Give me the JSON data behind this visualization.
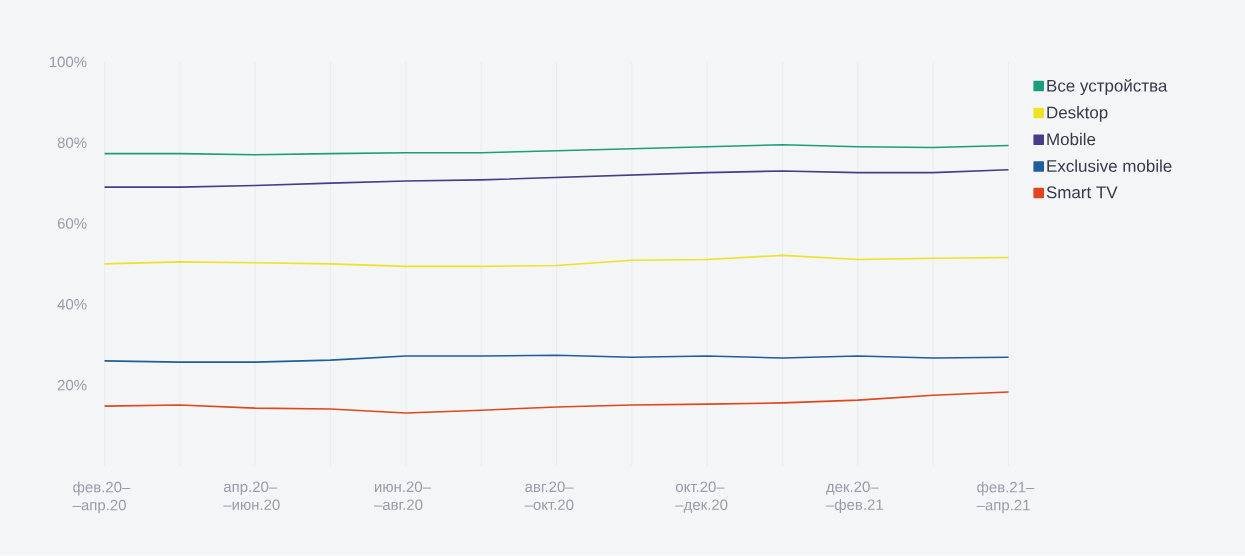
{
  "chart_data": {
    "type": "line",
    "categories": [
      "фев.20– –апр.20",
      null,
      "апр.20– –июн.20",
      null,
      "июн.20– –авг.20",
      null,
      "авг.20– –окт.20",
      null,
      "окт.20– –дек.20",
      null,
      "дек.20– –фев.21",
      null,
      "фев.21– –апр.21"
    ],
    "series": [
      {
        "name": "Все устройства",
        "color": "#1b9e7f",
        "values": [
          77.3,
          77.3,
          77.0,
          77.3,
          77.5,
          77.5,
          78.0,
          78.5,
          79.0,
          79.5,
          79.0,
          78.8,
          79.3
        ]
      },
      {
        "name": "Desktop",
        "color": "#eee225",
        "values": [
          50.0,
          50.5,
          50.3,
          50.0,
          49.4,
          49.4,
          49.6,
          50.9,
          51.1,
          52.1,
          51.1,
          51.4,
          51.6
        ]
      },
      {
        "name": "Mobile",
        "color": "#4a3b88",
        "values": [
          69.0,
          69.0,
          69.4,
          70.0,
          70.5,
          70.8,
          71.4,
          72.0,
          72.6,
          73.0,
          72.6,
          72.6,
          73.3
        ]
      },
      {
        "name": "Exclusive mobile",
        "color": "#1f5e9c",
        "values": [
          26.0,
          25.7,
          25.7,
          26.2,
          27.2,
          27.2,
          27.4,
          26.9,
          27.2,
          26.7,
          27.2,
          26.7,
          26.9
        ]
      },
      {
        "name": "Smart TV",
        "color": "#e1461d",
        "values": [
          14.8,
          15.1,
          14.3,
          14.1,
          13.1,
          13.8,
          14.6,
          15.1,
          15.3,
          15.6,
          16.3,
          17.5,
          18.3
        ]
      }
    ],
    "ylim": [
      0,
      100
    ],
    "yticks": [
      {
        "value": 20,
        "label": "20%"
      },
      {
        "value": 40,
        "label": "40%"
      },
      {
        "value": 60,
        "label": "60%"
      },
      {
        "value": 80,
        "label": "80%"
      },
      {
        "value": 100,
        "label": "100%"
      }
    ],
    "grid": "x",
    "legend": "top right"
  }
}
